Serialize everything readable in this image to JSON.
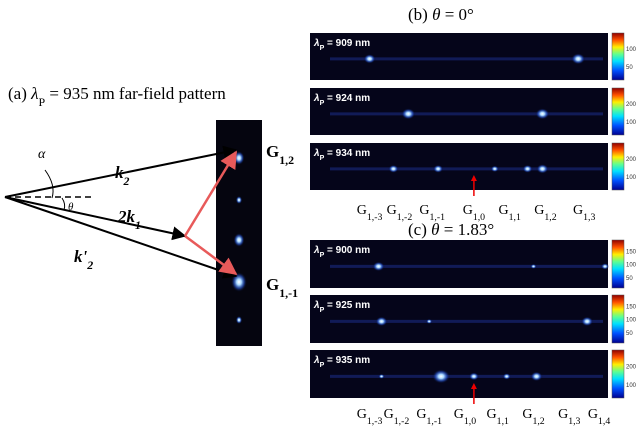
{
  "panel_a": {
    "title": {
      "prefix": "(a) ",
      "base": "λ",
      "sub": "P",
      "rest": " = 935 nm far-field pattern"
    },
    "labels": {
      "alpha": "α",
      "theta": "θ",
      "k2": {
        "base": "k",
        "sub": "2"
      },
      "k1": {
        "base": "2k",
        "sub": "1"
      },
      "k2p": {
        "base": "k'",
        "sub": "2"
      },
      "g12": {
        "base": "G",
        "sub": "1,2"
      },
      "g1m1": {
        "base": "G",
        "sub": "1,-1"
      }
    }
  },
  "panel_b": {
    "title": {
      "prefix": "(b) ",
      "theta": "θ",
      "rest": " = 0°"
    },
    "images": [
      {
        "label": {
          "base": "λ",
          "sub": "P",
          "rest": " = 909 nm"
        },
        "colorbar_ticks": [
          "100",
          "50"
        ]
      },
      {
        "label": {
          "base": "λ",
          "sub": "P",
          "rest": " = 924 nm"
        },
        "colorbar_ticks": [
          "200",
          "100"
        ]
      },
      {
        "label": {
          "base": "λ",
          "sub": "P",
          "rest": " = 934 nm"
        },
        "colorbar_ticks": [
          "200",
          "100"
        ]
      }
    ],
    "orders": [
      {
        "base": "G",
        "sub": "1,-3"
      },
      {
        "base": "G",
        "sub": "1,-2"
      },
      {
        "base": "G",
        "sub": "1,-1"
      },
      {
        "base": "G",
        "sub": "1,0"
      },
      {
        "base": "G",
        "sub": "1,1"
      },
      {
        "base": "G",
        "sub": "1,2"
      },
      {
        "base": "G",
        "sub": "1,3"
      }
    ]
  },
  "panel_c": {
    "title": {
      "prefix": "(c) ",
      "theta": "θ",
      "rest": " = 1.83°"
    },
    "images": [
      {
        "label": {
          "base": "λ",
          "sub": "P",
          "rest": " = 900 nm"
        },
        "colorbar_ticks": [
          "150",
          "100",
          "50"
        ]
      },
      {
        "label": {
          "base": "λ",
          "sub": "P",
          "rest": " = 925 nm"
        },
        "colorbar_ticks": [
          "150",
          "100",
          "50"
        ]
      },
      {
        "label": {
          "base": "λ",
          "sub": "P",
          "rest": " = 935 nm"
        },
        "colorbar_ticks": [
          "200",
          "100"
        ]
      }
    ],
    "orders": [
      {
        "base": "G",
        "sub": "1,-3"
      },
      {
        "base": "G",
        "sub": "1,-2"
      },
      {
        "base": "G",
        "sub": "1,-1"
      },
      {
        "base": "G",
        "sub": "1,0"
      },
      {
        "base": "G",
        "sub": "1,1"
      },
      {
        "base": "G",
        "sub": "1,2"
      },
      {
        "base": "G",
        "sub": "1,3"
      },
      {
        "base": "G",
        "sub": "1,4"
      }
    ]
  }
}
